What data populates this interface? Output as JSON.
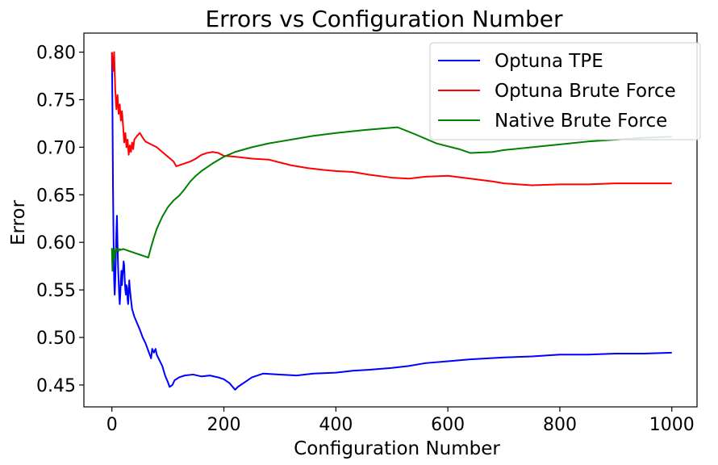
{
  "chart_data": {
    "type": "line",
    "title": "Errors vs Configuration Number",
    "xlabel": "Configuration Number",
    "ylabel": "Error",
    "xlim": [
      -50,
      1045
    ],
    "ylim": [
      0.427,
      0.82
    ],
    "xticks": [
      0,
      200,
      400,
      600,
      800,
      1000
    ],
    "yticks": [
      0.45,
      0.5,
      0.55,
      0.6,
      0.65,
      0.7,
      0.75,
      0.8
    ],
    "grid": false,
    "legend_position": "top-right",
    "series": [
      {
        "name": "Optuna TPE",
        "color": "#0000ff",
        "points": [
          [
            0,
            0.8
          ],
          [
            1,
            0.74
          ],
          [
            2,
            0.655
          ],
          [
            3,
            0.6
          ],
          [
            4,
            0.56
          ],
          [
            5,
            0.545
          ],
          [
            6,
            0.56
          ],
          [
            7,
            0.585
          ],
          [
            8,
            0.61
          ],
          [
            9,
            0.628
          ],
          [
            10,
            0.6
          ],
          [
            11,
            0.575
          ],
          [
            12,
            0.56
          ],
          [
            13,
            0.545
          ],
          [
            14,
            0.535
          ],
          [
            15,
            0.545
          ],
          [
            16,
            0.56
          ],
          [
            17,
            0.57
          ],
          [
            18,
            0.555
          ],
          [
            19,
            0.565
          ],
          [
            20,
            0.572
          ],
          [
            21,
            0.58
          ],
          [
            22,
            0.575
          ],
          [
            23,
            0.56
          ],
          [
            24,
            0.55
          ],
          [
            25,
            0.545
          ],
          [
            26,
            0.555
          ],
          [
            27,
            0.552
          ],
          [
            28,
            0.54
          ],
          [
            29,
            0.535
          ],
          [
            30,
            0.548
          ],
          [
            31,
            0.56
          ],
          [
            32,
            0.552
          ],
          [
            34,
            0.54
          ],
          [
            36,
            0.53
          ],
          [
            40,
            0.522
          ],
          [
            45,
            0.515
          ],
          [
            50,
            0.508
          ],
          [
            55,
            0.5
          ],
          [
            60,
            0.494
          ],
          [
            65,
            0.486
          ],
          [
            70,
            0.478
          ],
          [
            72,
            0.488
          ],
          [
            75,
            0.484
          ],
          [
            78,
            0.488
          ],
          [
            80,
            0.482
          ],
          [
            85,
            0.476
          ],
          [
            90,
            0.47
          ],
          [
            95,
            0.46
          ],
          [
            100,
            0.453
          ],
          [
            103,
            0.448
          ],
          [
            108,
            0.45
          ],
          [
            112,
            0.455
          ],
          [
            120,
            0.458
          ],
          [
            130,
            0.46
          ],
          [
            145,
            0.461
          ],
          [
            160,
            0.459
          ],
          [
            175,
            0.46
          ],
          [
            190,
            0.458
          ],
          [
            200,
            0.456
          ],
          [
            210,
            0.452
          ],
          [
            220,
            0.445
          ],
          [
            225,
            0.448
          ],
          [
            235,
            0.452
          ],
          [
            250,
            0.458
          ],
          [
            270,
            0.462
          ],
          [
            300,
            0.461
          ],
          [
            330,
            0.46
          ],
          [
            360,
            0.462
          ],
          [
            400,
            0.463
          ],
          [
            430,
            0.465
          ],
          [
            460,
            0.466
          ],
          [
            500,
            0.468
          ],
          [
            530,
            0.47
          ],
          [
            560,
            0.473
          ],
          [
            600,
            0.475
          ],
          [
            640,
            0.477
          ],
          [
            700,
            0.479
          ],
          [
            750,
            0.48
          ],
          [
            800,
            0.482
          ],
          [
            850,
            0.482
          ],
          [
            900,
            0.483
          ],
          [
            950,
            0.483
          ],
          [
            1000,
            0.484
          ]
        ]
      },
      {
        "name": "Optuna Brute Force",
        "color": "#ff0000",
        "points": [
          [
            0,
            0.8
          ],
          [
            2,
            0.78
          ],
          [
            4,
            0.8
          ],
          [
            6,
            0.76
          ],
          [
            8,
            0.74
          ],
          [
            10,
            0.755
          ],
          [
            12,
            0.735
          ],
          [
            14,
            0.745
          ],
          [
            16,
            0.728
          ],
          [
            18,
            0.738
          ],
          [
            20,
            0.722
          ],
          [
            22,
            0.705
          ],
          [
            24,
            0.715
          ],
          [
            26,
            0.7
          ],
          [
            28,
            0.708
          ],
          [
            30,
            0.692
          ],
          [
            32,
            0.702
          ],
          [
            34,
            0.695
          ],
          [
            36,
            0.705
          ],
          [
            38,
            0.698
          ],
          [
            40,
            0.708
          ],
          [
            45,
            0.712
          ],
          [
            50,
            0.715
          ],
          [
            55,
            0.71
          ],
          [
            60,
            0.706
          ],
          [
            70,
            0.703
          ],
          [
            80,
            0.7
          ],
          [
            90,
            0.695
          ],
          [
            100,
            0.69
          ],
          [
            110,
            0.685
          ],
          [
            115,
            0.68
          ],
          [
            120,
            0.681
          ],
          [
            130,
            0.683
          ],
          [
            140,
            0.685
          ],
          [
            150,
            0.688
          ],
          [
            160,
            0.692
          ],
          [
            170,
            0.694
          ],
          [
            180,
            0.695
          ],
          [
            190,
            0.694
          ],
          [
            200,
            0.691
          ],
          [
            220,
            0.69
          ],
          [
            250,
            0.688
          ],
          [
            280,
            0.687
          ],
          [
            300,
            0.684
          ],
          [
            320,
            0.681
          ],
          [
            350,
            0.678
          ],
          [
            380,
            0.676
          ],
          [
            400,
            0.675
          ],
          [
            430,
            0.674
          ],
          [
            460,
            0.671
          ],
          [
            500,
            0.668
          ],
          [
            530,
            0.667
          ],
          [
            560,
            0.669
          ],
          [
            600,
            0.67
          ],
          [
            640,
            0.667
          ],
          [
            680,
            0.664
          ],
          [
            700,
            0.662
          ],
          [
            750,
            0.66
          ],
          [
            800,
            0.661
          ],
          [
            850,
            0.661
          ],
          [
            900,
            0.662
          ],
          [
            950,
            0.662
          ],
          [
            1000,
            0.662
          ]
        ]
      },
      {
        "name": "Native Brute Force",
        "color": "#008000",
        "points": [
          [
            0,
            0.594
          ],
          [
            1,
            0.57
          ],
          [
            2,
            0.583
          ],
          [
            3,
            0.592
          ],
          [
            4,
            0.588
          ],
          [
            5,
            0.583
          ],
          [
            6,
            0.59
          ],
          [
            7,
            0.594
          ],
          [
            8,
            0.591
          ],
          [
            9,
            0.593
          ],
          [
            10,
            0.592
          ],
          [
            12,
            0.591
          ],
          [
            14,
            0.593
          ],
          [
            16,
            0.592
          ],
          [
            20,
            0.593
          ],
          [
            25,
            0.592
          ],
          [
            30,
            0.591
          ],
          [
            35,
            0.59
          ],
          [
            40,
            0.589
          ],
          [
            45,
            0.588
          ],
          [
            50,
            0.587
          ],
          [
            55,
            0.586
          ],
          [
            60,
            0.585
          ],
          [
            65,
            0.584
          ],
          [
            70,
            0.595
          ],
          [
            75,
            0.605
          ],
          [
            80,
            0.614
          ],
          [
            90,
            0.627
          ],
          [
            100,
            0.637
          ],
          [
            110,
            0.644
          ],
          [
            120,
            0.649
          ],
          [
            130,
            0.656
          ],
          [
            140,
            0.664
          ],
          [
            150,
            0.67
          ],
          [
            160,
            0.675
          ],
          [
            180,
            0.683
          ],
          [
            200,
            0.69
          ],
          [
            220,
            0.695
          ],
          [
            250,
            0.7
          ],
          [
            280,
            0.704
          ],
          [
            300,
            0.706
          ],
          [
            330,
            0.709
          ],
          [
            360,
            0.712
          ],
          [
            400,
            0.715
          ],
          [
            450,
            0.718
          ],
          [
            510,
            0.721
          ],
          [
            540,
            0.714
          ],
          [
            580,
            0.704
          ],
          [
            620,
            0.698
          ],
          [
            640,
            0.694
          ],
          [
            680,
            0.695
          ],
          [
            700,
            0.697
          ],
          [
            750,
            0.7
          ],
          [
            800,
            0.703
          ],
          [
            850,
            0.706
          ],
          [
            900,
            0.708
          ],
          [
            950,
            0.71
          ],
          [
            1000,
            0.711
          ]
        ]
      }
    ]
  }
}
